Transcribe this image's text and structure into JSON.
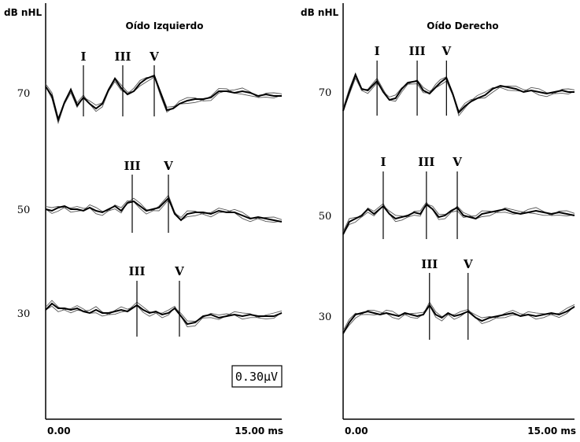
{
  "chart_data": [
    {
      "type": "line",
      "title": "Oído Izquierdo",
      "ylabel": "dB nHL",
      "xlim": [
        0,
        15
      ],
      "x_tick_labels": [
        "0.00",
        "15.00 ms"
      ],
      "calibration": "0.30µV",
      "levels": [
        {
          "level": "70",
          "peaks": [
            {
              "label": "I",
              "latency_ms": 2.4
            },
            {
              "label": "III",
              "latency_ms": 4.9
            },
            {
              "label": "V",
              "latency_ms": 6.9
            }
          ],
          "waveform": {
            "x": [
              0.0,
              0.4,
              0.8,
              1.2,
              1.6,
              2.0,
              2.4,
              2.8,
              3.2,
              3.6,
              4.0,
              4.4,
              4.8,
              5.2,
              5.6,
              6.0,
              6.4,
              6.9,
              7.3,
              7.7,
              8.1,
              8.5,
              9.0,
              9.5,
              10.0,
              10.5,
              11.0,
              11.5,
              12.0,
              12.5,
              13.0,
              13.5,
              14.0,
              14.5,
              15.0
            ],
            "y": [
              0.2,
              -0.1,
              -0.85,
              -0.3,
              0.1,
              -0.4,
              -0.15,
              -0.35,
              -0.5,
              -0.35,
              0.1,
              0.45,
              0.15,
              -0.05,
              0.05,
              0.3,
              0.45,
              0.55,
              0.0,
              -0.55,
              -0.5,
              -0.35,
              -0.25,
              -0.2,
              -0.2,
              -0.15,
              0.05,
              0.05,
              0.0,
              0.05,
              0.0,
              -0.1,
              -0.05,
              -0.1,
              -0.1
            ]
          }
        },
        {
          "level": "50",
          "peaks": [
            {
              "label": "III",
              "latency_ms": 5.5
            },
            {
              "label": "V",
              "latency_ms": 7.8
            }
          ],
          "waveform": {
            "x": [
              0.0,
              0.4,
              0.8,
              1.2,
              1.6,
              2.0,
              2.4,
              2.8,
              3.2,
              3.6,
              4.0,
              4.4,
              4.8,
              5.2,
              5.6,
              6.0,
              6.4,
              6.8,
              7.2,
              7.8,
              8.2,
              8.6,
              9.0,
              9.5,
              10.0,
              10.5,
              11.0,
              11.5,
              12.0,
              12.5,
              13.0,
              13.5,
              14.0,
              14.5,
              15.0
            ],
            "y": [
              0.0,
              -0.05,
              0.05,
              0.1,
              0.0,
              0.0,
              -0.05,
              0.05,
              -0.05,
              -0.1,
              0.0,
              0.1,
              -0.05,
              0.2,
              0.25,
              0.1,
              -0.05,
              0.0,
              0.05,
              0.35,
              -0.15,
              -0.35,
              -0.15,
              -0.1,
              -0.1,
              -0.15,
              -0.05,
              -0.1,
              -0.1,
              -0.2,
              -0.3,
              -0.25,
              -0.3,
              -0.35,
              -0.4
            ]
          }
        },
        {
          "level": "30",
          "peaks": [
            {
              "label": "III",
              "latency_ms": 5.8
            },
            {
              "label": "V",
              "latency_ms": 8.5
            }
          ],
          "waveform": {
            "x": [
              0.0,
              0.4,
              0.8,
              1.2,
              1.6,
              2.0,
              2.4,
              2.8,
              3.2,
              3.6,
              4.0,
              4.4,
              4.8,
              5.2,
              5.8,
              6.2,
              6.6,
              7.0,
              7.4,
              7.8,
              8.2,
              8.6,
              9.0,
              9.5,
              10.0,
              10.5,
              11.0,
              11.5,
              12.0,
              12.5,
              13.0,
              13.5,
              14.0,
              14.5,
              15.0
            ],
            "y": [
              0.1,
              0.3,
              0.15,
              0.15,
              0.1,
              0.15,
              0.05,
              0.0,
              0.1,
              0.0,
              0.0,
              0.05,
              0.1,
              0.05,
              0.25,
              0.1,
              0.0,
              0.05,
              -0.05,
              0.0,
              0.15,
              -0.1,
              -0.35,
              -0.3,
              -0.1,
              -0.05,
              -0.15,
              -0.1,
              -0.05,
              -0.1,
              -0.05,
              -0.1,
              -0.1,
              -0.1,
              0.0
            ]
          }
        }
      ],
      "panel": "left"
    },
    {
      "type": "line",
      "title": "Oído Derecho",
      "ylabel": "dB nHL",
      "xlim": [
        0,
        15
      ],
      "x_tick_labels": [
        "0.00",
        "15.00 ms"
      ],
      "levels": [
        {
          "level": "70",
          "peaks": [
            {
              "label": "I",
              "latency_ms": 2.2
            },
            {
              "label": "III",
              "latency_ms": 4.8
            },
            {
              "label": "V",
              "latency_ms": 6.7
            }
          ],
          "waveform": {
            "x": [
              0.0,
              0.4,
              0.8,
              1.2,
              1.6,
              2.2,
              2.6,
              3.0,
              3.4,
              3.8,
              4.2,
              4.8,
              5.2,
              5.6,
              6.0,
              6.3,
              6.7,
              7.1,
              7.5,
              7.9,
              8.3,
              8.7,
              9.2,
              9.7,
              10.2,
              10.7,
              11.2,
              11.7,
              12.2,
              12.7,
              13.2,
              13.7,
              14.2,
              14.6,
              15.0
            ],
            "y": [
              -0.6,
              0.0,
              0.55,
              0.1,
              0.05,
              0.35,
              0.0,
              -0.25,
              -0.2,
              0.1,
              0.3,
              0.35,
              0.05,
              -0.05,
              0.15,
              0.3,
              0.45,
              -0.05,
              -0.65,
              -0.45,
              -0.3,
              -0.2,
              -0.1,
              0.1,
              0.2,
              0.15,
              0.1,
              0.0,
              0.05,
              0.0,
              -0.05,
              0.0,
              0.05,
              0.0,
              0.0
            ]
          }
        },
        {
          "level": "50",
          "peaks": [
            {
              "label": "I",
              "latency_ms": 2.6
            },
            {
              "label": "III",
              "latency_ms": 5.4
            },
            {
              "label": "V",
              "latency_ms": 7.4
            }
          ],
          "waveform": {
            "x": [
              0.0,
              0.4,
              0.8,
              1.2,
              1.6,
              2.0,
              2.6,
              3.0,
              3.4,
              3.8,
              4.2,
              4.6,
              5.0,
              5.4,
              5.8,
              6.2,
              6.6,
              7.0,
              7.4,
              7.8,
              8.2,
              8.6,
              9.0,
              9.5,
              10.0,
              10.5,
              11.0,
              11.5,
              12.0,
              12.5,
              13.0,
              13.5,
              14.0,
              14.5,
              15.0
            ],
            "y": [
              -0.6,
              -0.2,
              -0.1,
              0.0,
              0.2,
              0.05,
              0.3,
              0.05,
              -0.1,
              -0.05,
              0.0,
              0.1,
              0.05,
              0.35,
              0.2,
              -0.05,
              0.0,
              0.15,
              0.25,
              0.0,
              -0.05,
              -0.1,
              0.05,
              0.1,
              0.15,
              0.2,
              0.1,
              0.05,
              0.1,
              0.15,
              0.1,
              0.05,
              0.1,
              0.05,
              0.0
            ]
          }
        },
        {
          "level": "30",
          "peaks": [
            {
              "label": "III",
              "latency_ms": 5.6
            },
            {
              "label": "V",
              "latency_ms": 8.1
            }
          ],
          "waveform": {
            "x": [
              0.0,
              0.4,
              0.8,
              1.2,
              1.6,
              2.0,
              2.4,
              2.8,
              3.2,
              3.6,
              4.0,
              4.4,
              4.8,
              5.2,
              5.6,
              6.0,
              6.4,
              6.8,
              7.2,
              7.6,
              8.1,
              8.6,
              9.0,
              9.5,
              10.0,
              10.5,
              11.0,
              11.5,
              12.0,
              12.5,
              13.0,
              13.5,
              14.0,
              14.5,
              15.0
            ],
            "y": [
              -0.55,
              -0.2,
              0.05,
              0.1,
              0.15,
              0.1,
              0.05,
              0.1,
              0.05,
              0.0,
              0.1,
              0.05,
              0.0,
              0.05,
              0.35,
              0.05,
              -0.05,
              0.1,
              0.0,
              0.05,
              0.15,
              -0.05,
              -0.15,
              -0.05,
              0.0,
              0.05,
              0.1,
              0.0,
              0.05,
              0.0,
              0.05,
              0.1,
              0.05,
              0.15,
              0.3
            ]
          }
        }
      ],
      "panel": "right"
    }
  ]
}
